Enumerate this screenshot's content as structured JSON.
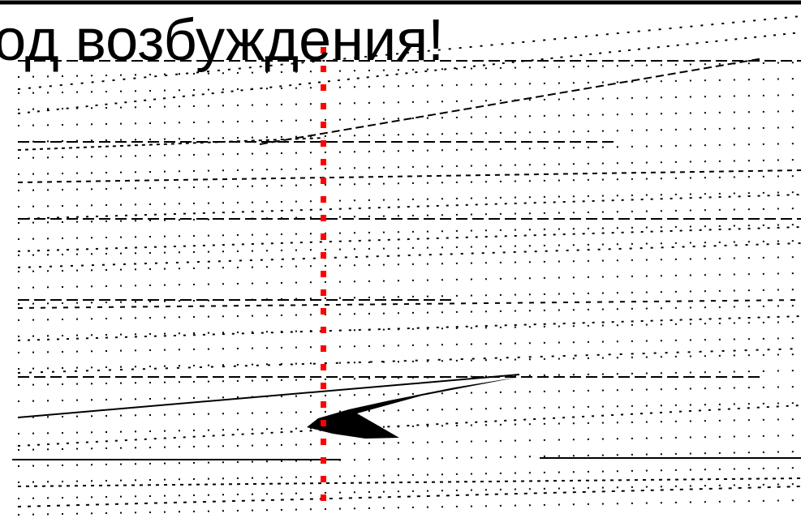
{
  "slide": {
    "title": "тод возбуждения!"
  },
  "colors": {
    "background": "#ffffff",
    "lines": "#000000",
    "marker": "#ff0000"
  }
}
